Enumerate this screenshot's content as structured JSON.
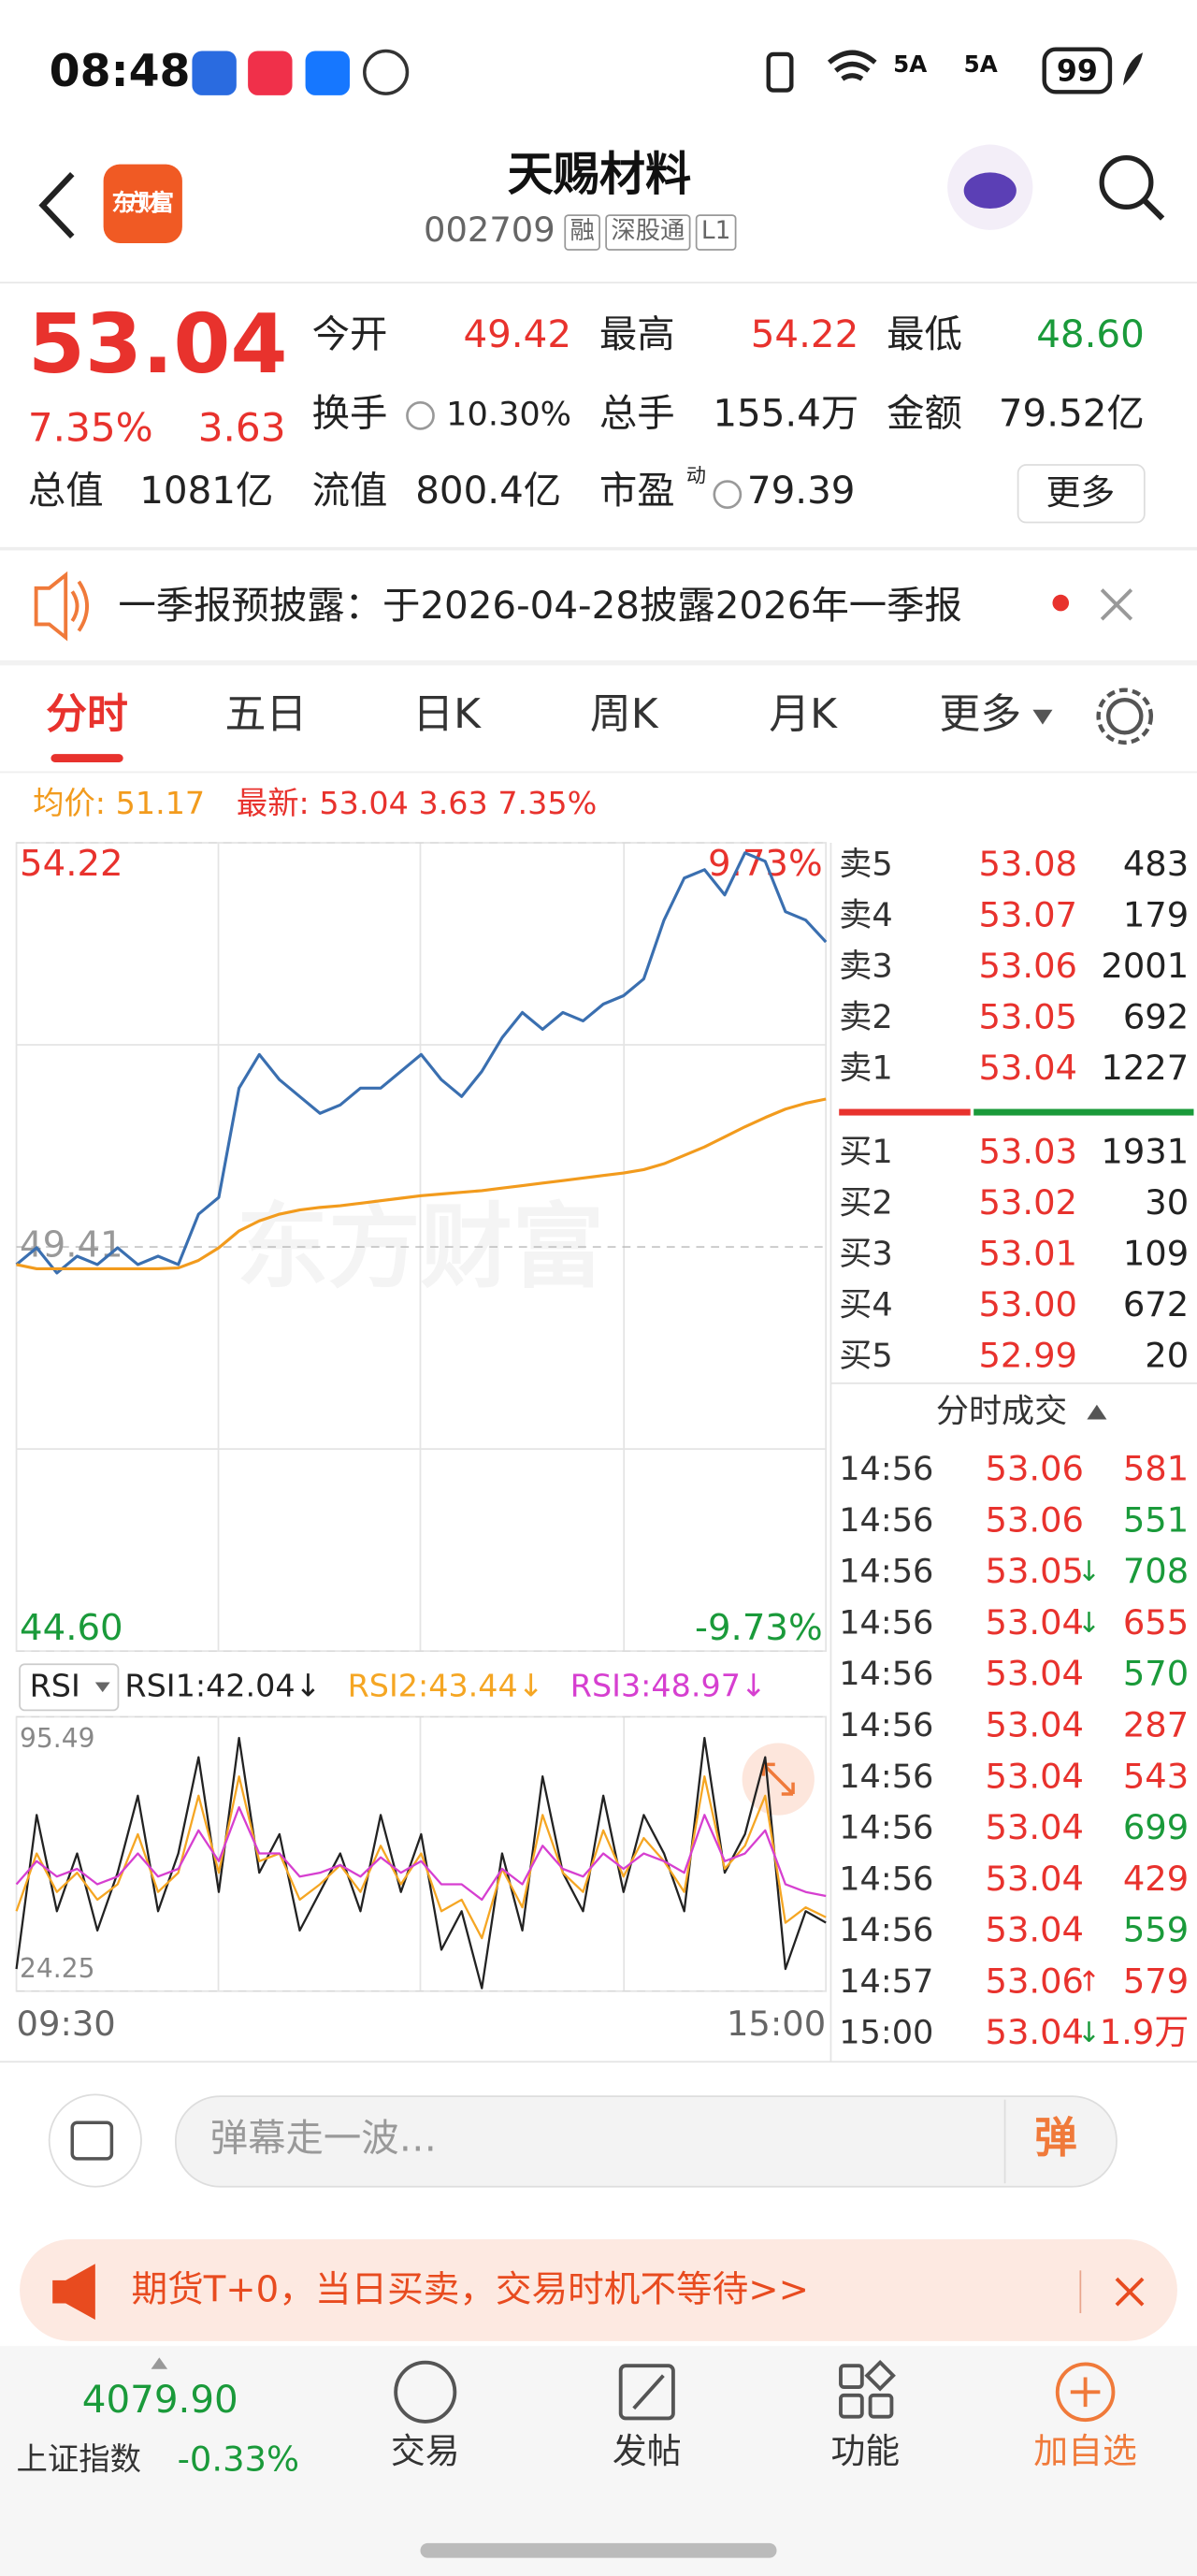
{
  "status_bar": {
    "time": "08:48",
    "network": [
      "5A",
      "5A"
    ],
    "battery": "99"
  },
  "header": {
    "logo": "东方财富",
    "title": "天赐材料",
    "code": "002709",
    "tags": [
      "融",
      "深股通",
      "L1"
    ]
  },
  "quote": {
    "price": "53.04",
    "change_pct": "7.35%",
    "change": "3.63",
    "fields": [
      {
        "label": "今开",
        "value": "49.42",
        "color": "#e8322d"
      },
      {
        "label": "最高",
        "value": "54.22",
        "color": "#e8322d"
      },
      {
        "label": "最低",
        "value": "48.60",
        "color": "#1a9a3a"
      },
      {
        "label": "换手",
        "value": "10.30%",
        "color": "#222222"
      },
      {
        "label": "总手",
        "value": "155.4万",
        "color": "#222222"
      },
      {
        "label": "金额",
        "value": "79.52亿",
        "color": "#222222"
      },
      {
        "label": "总值",
        "value": "1081亿",
        "color": "#222222"
      },
      {
        "label": "流值",
        "value": "800.4亿",
        "color": "#222222"
      },
      {
        "label": "市盈",
        "label_sup": "动",
        "value": "79.39",
        "color": "#222222"
      }
    ],
    "more_button": "更多"
  },
  "notice": {
    "text": "一季报预披露：于2026-04-28披露2026年一季报"
  },
  "tabs": {
    "items": [
      "分时",
      "五日",
      "日K",
      "周K",
      "月K",
      "更多"
    ],
    "active": 0
  },
  "summary": {
    "average": "均价: 51.17",
    "latest": "最新: 53.04 3.63 7.35%"
  },
  "chart_data": [
    {
      "type": "line",
      "watermark": "东方财富",
      "xlim": [
        0,
        240
      ],
      "ylim": [
        44.6,
        54.22
      ],
      "y2lim": [
        -9.73,
        9.73
      ],
      "yticks": [
        54.22,
        49.41,
        {
          "value": 44.6,
          "label": "44.60"
        }
      ],
      "ytick_colors": [
        "#e8322d",
        "#999999",
        "#1a9a3a"
      ],
      "y2ticks": [
        {
          "value": 9.73,
          "label": "9.73%"
        },
        {
          "value": -9.73,
          "label": "-9.73%"
        }
      ],
      "y2tick_colors": [
        "#e8322d",
        "#1a9a3a"
      ],
      "x": [
        0,
        6,
        12,
        18,
        24,
        30,
        36,
        42,
        48,
        54,
        60,
        66,
        72,
        78,
        84,
        90,
        96,
        102,
        108,
        114,
        120,
        126,
        132,
        138,
        144,
        150,
        156,
        162,
        168,
        174,
        180,
        186,
        192,
        198,
        204,
        210,
        216,
        222,
        228,
        234,
        240
      ],
      "series": [
        {
          "color": "#3a6fb0",
          "values": [
            49.2,
            49.4,
            49.1,
            49.3,
            49.2,
            49.4,
            49.2,
            49.3,
            49.2,
            49.8,
            50.0,
            51.3,
            51.7,
            51.4,
            51.2,
            51.0,
            51.1,
            51.3,
            51.3,
            51.5,
            51.7,
            51.4,
            51.2,
            51.5,
            51.9,
            52.2,
            52.0,
            52.2,
            52.1,
            52.3,
            52.4,
            52.6,
            53.3,
            53.8,
            53.9,
            53.6,
            54.1,
            54.0,
            53.4,
            53.3,
            53.04
          ]
        },
        {
          "color": "#f29b1d",
          "values": [
            49.2,
            49.15,
            49.15,
            49.15,
            49.15,
            49.15,
            49.15,
            49.15,
            49.16,
            49.25,
            49.4,
            49.6,
            49.72,
            49.8,
            49.85,
            49.88,
            49.9,
            49.93,
            49.96,
            49.99,
            50.02,
            50.04,
            50.06,
            50.08,
            50.11,
            50.14,
            50.17,
            50.2,
            50.23,
            50.26,
            50.29,
            50.33,
            50.4,
            50.5,
            50.6,
            50.72,
            50.84,
            50.95,
            51.05,
            51.12,
            51.17
          ]
        }
      ]
    },
    {
      "type": "line",
      "indicator": "RSI",
      "xlim": [
        0,
        240
      ],
      "ylim": [
        24.25,
        95.49
      ],
      "yticks": [
        95.49,
        24.25
      ],
      "xticks": [
        {
          "value": 0,
          "label": "09:30"
        },
        {
          "value": 240,
          "label": "15:00"
        }
      ],
      "x": [
        0,
        6,
        12,
        18,
        24,
        30,
        36,
        42,
        48,
        54,
        60,
        66,
        72,
        78,
        84,
        90,
        96,
        102,
        108,
        114,
        120,
        126,
        132,
        138,
        144,
        150,
        156,
        162,
        168,
        174,
        180,
        186,
        192,
        198,
        204,
        210,
        216,
        222,
        228,
        234,
        240
      ],
      "series": [
        {
          "name": "RSI1:42.04↓",
          "color": "#222222",
          "values": [
            30,
            70,
            45,
            60,
            40,
            55,
            75,
            45,
            60,
            85,
            50,
            90,
            55,
            65,
            40,
            50,
            60,
            45,
            70,
            50,
            65,
            35,
            45,
            25,
            60,
            40,
            80,
            55,
            45,
            75,
            50,
            70,
            60,
            45,
            90,
            55,
            65,
            85,
            30,
            45,
            42.04
          ]
        },
        {
          "name": "RSI2:43.44↓",
          "color": "#f5a623",
          "values": [
            45,
            60,
            50,
            55,
            48,
            52,
            65,
            50,
            55,
            75,
            55,
            80,
            58,
            60,
            48,
            52,
            57,
            50,
            62,
            52,
            60,
            45,
            48,
            38,
            56,
            46,
            70,
            55,
            50,
            66,
            54,
            64,
            58,
            50,
            80,
            56,
            62,
            75,
            42,
            46,
            43.44
          ]
        },
        {
          "name": "RSI3:48.97↓",
          "color": "#d63fd0",
          "values": [
            52,
            58,
            54,
            56,
            52,
            54,
            60,
            54,
            56,
            66,
            58,
            72,
            60,
            60,
            54,
            55,
            57,
            54,
            59,
            55,
            58,
            52,
            52,
            48,
            56,
            52,
            62,
            56,
            54,
            60,
            56,
            60,
            58,
            55,
            70,
            58,
            60,
            66,
            52,
            50,
            48.97
          ]
        }
      ]
    }
  ],
  "order_book": {
    "asks": [
      {
        "label": "卖5",
        "price": "53.08",
        "volume": "483"
      },
      {
        "label": "卖4",
        "price": "53.07",
        "volume": "179"
      },
      {
        "label": "卖3",
        "price": "53.06",
        "volume": "2001"
      },
      {
        "label": "卖2",
        "price": "53.05",
        "volume": "692"
      },
      {
        "label": "卖1",
        "price": "53.04",
        "volume": "1227"
      }
    ],
    "bids": [
      {
        "label": "买1",
        "price": "53.03",
        "volume": "1931"
      },
      {
        "label": "买2",
        "price": "53.02",
        "volume": "30"
      },
      {
        "label": "买3",
        "price": "53.01",
        "volume": "109"
      },
      {
        "label": "买4",
        "price": "53.00",
        "volume": "672"
      },
      {
        "label": "买5",
        "price": "52.99",
        "volume": "20"
      }
    ]
  },
  "trades": {
    "title": "分时成交",
    "rows": [
      {
        "time": "14:56",
        "price": "53.06",
        "volume": "581",
        "volume_color": "#e8322d"
      },
      {
        "time": "14:56",
        "price": "53.06",
        "volume": "551",
        "volume_color": "#1a9a3a"
      },
      {
        "time": "14:56",
        "price": "53.05",
        "arrow": "↓",
        "arrow_color": "#1a9a3a",
        "volume": "708",
        "volume_color": "#1a9a3a"
      },
      {
        "time": "14:56",
        "price": "53.04",
        "arrow": "↓",
        "arrow_color": "#1a9a3a",
        "volume": "655",
        "volume_color": "#e8322d"
      },
      {
        "time": "14:56",
        "price": "53.04",
        "volume": "570",
        "volume_color": "#1a9a3a"
      },
      {
        "time": "14:56",
        "price": "53.04",
        "volume": "287",
        "volume_color": "#e8322d"
      },
      {
        "time": "14:56",
        "price": "53.04",
        "volume": "543",
        "volume_color": "#e8322d"
      },
      {
        "time": "14:56",
        "price": "53.04",
        "volume": "699",
        "volume_color": "#1a9a3a"
      },
      {
        "time": "14:56",
        "price": "53.04",
        "volume": "429",
        "volume_color": "#e8322d"
      },
      {
        "time": "14:56",
        "price": "53.04",
        "volume": "559",
        "volume_color": "#1a9a3a"
      },
      {
        "time": "14:57",
        "price": "53.06",
        "arrow": "↑",
        "arrow_color": "#e8322d",
        "volume": "579",
        "volume_color": "#e8322d"
      },
      {
        "time": "15:00",
        "price": "53.04",
        "arrow": "↓",
        "arrow_color": "#1a9a3a",
        "volume": "1.9万",
        "volume_color": "#e8322d"
      }
    ]
  },
  "comment_bar": {
    "placeholder": "弹幕走一波…",
    "button": "弹"
  },
  "ad": {
    "text": "期货T+0，当日买卖，交易时机不等待>>"
  },
  "bottom_nav": {
    "index_value": "4079.90",
    "index_name": "上证指数",
    "index_change": "-0.33%",
    "items": [
      "交易",
      "发帖",
      "功能",
      "加自选"
    ],
    "highlight": 3
  }
}
